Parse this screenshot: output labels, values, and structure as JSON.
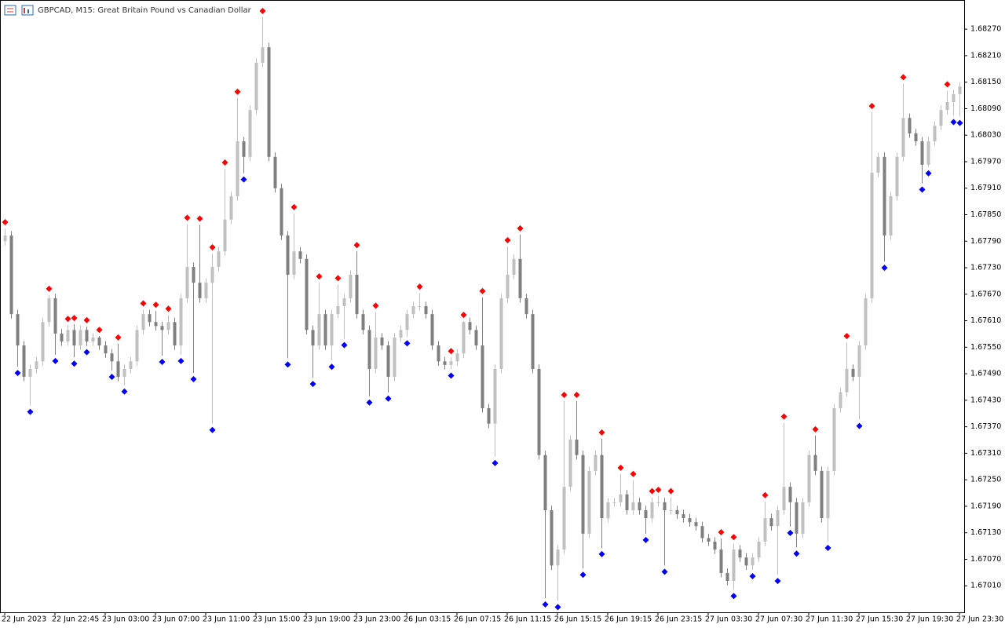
{
  "chart_data": {
    "type": "candlestick",
    "title": "GBPCAD, M15:  Great Britain Pound vs Canadian Dollar",
    "up_color": "#c0c0c0",
    "down_color": "#7f7f7f",
    "fractal_up_color": "#ff0000",
    "fractal_down_color": "#0000ff",
    "ylim": [
      1.6695,
      1.68336
    ],
    "yticks": [
      {
        "value": 1.6701,
        "label": "1.67010"
      },
      {
        "value": 1.6707,
        "label": "1.67070"
      },
      {
        "value": 1.6713,
        "label": "1.67130"
      },
      {
        "value": 1.6719,
        "label": "1.67190"
      },
      {
        "value": 1.6725,
        "label": "1.67250"
      },
      {
        "value": 1.6731,
        "label": "1.67310"
      },
      {
        "value": 1.6737,
        "label": "1.67370"
      },
      {
        "value": 1.6743,
        "label": "1.67430"
      },
      {
        "value": 1.6749,
        "label": "1.67490"
      },
      {
        "value": 1.6755,
        "label": "1.67550"
      },
      {
        "value": 1.6761,
        "label": "1.67610"
      },
      {
        "value": 1.6767,
        "label": "1.67670"
      },
      {
        "value": 1.6773,
        "label": "1.67730"
      },
      {
        "value": 1.6779,
        "label": "1.67790"
      },
      {
        "value": 1.6785,
        "label": "1.67850"
      },
      {
        "value": 1.6791,
        "label": "1.67910"
      },
      {
        "value": 1.6797,
        "label": "1.67970"
      },
      {
        "value": 1.6803,
        "label": "1.68030"
      },
      {
        "value": 1.6809,
        "label": "1.68090"
      },
      {
        "value": 1.6815,
        "label": "1.68150"
      },
      {
        "value": 1.6821,
        "label": "1.68210"
      },
      {
        "value": 1.6827,
        "label": "1.68270"
      }
    ],
    "categories": [
      "22 Jun 2023",
      null,
      null,
      null,
      null,
      null,
      null,
      null,
      "22 Jun 22:45",
      null,
      null,
      null,
      null,
      null,
      null,
      null,
      "23 Jun 03:00",
      null,
      null,
      null,
      null,
      null,
      null,
      null,
      "23 Jun 07:00",
      null,
      null,
      null,
      null,
      null,
      null,
      null,
      "23 Jun 11:00",
      null,
      null,
      null,
      null,
      null,
      null,
      null,
      "23 Jun 15:00",
      null,
      null,
      null,
      null,
      null,
      null,
      null,
      "23 Jun 19:00",
      null,
      null,
      null,
      null,
      null,
      null,
      null,
      "23 Jun 23:00",
      null,
      null,
      null,
      null,
      null,
      null,
      null,
      "26 Jun 03:15",
      null,
      null,
      null,
      null,
      null,
      null,
      null,
      "26 Jun 07:15",
      null,
      null,
      null,
      null,
      null,
      null,
      null,
      "26 Jun 11:15",
      null,
      null,
      null,
      null,
      null,
      null,
      null,
      "26 Jun 15:15",
      null,
      null,
      null,
      null,
      null,
      null,
      null,
      "26 Jun 19:15",
      null,
      null,
      null,
      null,
      null,
      null,
      null,
      "26 Jun 23:15",
      null,
      null,
      null,
      null,
      null,
      null,
      null,
      "27 Jun 03:30",
      null,
      null,
      null,
      null,
      null,
      null,
      null,
      "27 Jun 07:30",
      null,
      null,
      null,
      null,
      null,
      null,
      null,
      "27 Jun 11:30",
      null,
      null,
      null,
      null,
      null,
      null,
      null,
      "27 Jun 15:30",
      null,
      null,
      null,
      null,
      null,
      null,
      null,
      "27 Jun 19:30",
      null,
      null,
      null,
      null,
      null,
      null,
      null,
      "27 Jun 23:30"
    ],
    "ohlc": [
      [
        1.6779,
        1.67819,
        1.6778,
        1.67803
      ],
      [
        1.67803,
        1.67813,
        1.67615,
        1.67625
      ],
      [
        1.67625,
        1.67635,
        1.67506,
        1.67554
      ],
      [
        1.67554,
        1.67564,
        1.67473,
        1.67483
      ],
      [
        1.67483,
        1.67511,
        1.67418,
        1.67501
      ],
      [
        1.67501,
        1.67528,
        1.67491,
        1.67518
      ],
      [
        1.67518,
        1.67617,
        1.67508,
        1.67607
      ],
      [
        1.67607,
        1.67668,
        1.67597,
        1.67661
      ],
      [
        1.67661,
        1.67671,
        1.67533,
        1.67581
      ],
      [
        1.67581,
        1.67591,
        1.67553,
        1.67563
      ],
      [
        1.67563,
        1.676,
        1.67553,
        1.67589
      ],
      [
        1.67589,
        1.67602,
        1.67527,
        1.67554
      ],
      [
        1.67554,
        1.67599,
        1.67544,
        1.67589
      ],
      [
        1.67589,
        1.67597,
        1.67553,
        1.67563
      ],
      [
        1.67563,
        1.67582,
        1.67553,
        1.67572
      ],
      [
        1.67572,
        1.67575,
        1.67544,
        1.67554
      ],
      [
        1.67554,
        1.67564,
        1.67526,
        1.67536
      ],
      [
        1.67536,
        1.67546,
        1.67497,
        1.67518
      ],
      [
        1.67518,
        1.67558,
        1.67473,
        1.67483
      ],
      [
        1.67483,
        1.67511,
        1.67464,
        1.67501
      ],
      [
        1.67501,
        1.67528,
        1.67491,
        1.67518
      ],
      [
        1.67518,
        1.67599,
        1.67508,
        1.67589
      ],
      [
        1.67589,
        1.67635,
        1.67579,
        1.67625
      ],
      [
        1.67625,
        1.67635,
        1.67597,
        1.67607
      ],
      [
        1.67607,
        1.67632,
        1.67588,
        1.67598
      ],
      [
        1.67598,
        1.67608,
        1.67531,
        1.67589
      ],
      [
        1.67589,
        1.67623,
        1.67579,
        1.67607
      ],
      [
        1.67607,
        1.67617,
        1.67544,
        1.67554
      ],
      [
        1.67554,
        1.67671,
        1.67533,
        1.67661
      ],
      [
        1.67661,
        1.67829,
        1.67651,
        1.67732
      ],
      [
        1.67732,
        1.67742,
        1.67492,
        1.67696
      ],
      [
        1.67696,
        1.67827,
        1.67651,
        1.67661
      ],
      [
        1.67661,
        1.67706,
        1.67651,
        1.67696
      ],
      [
        1.67696,
        1.67762,
        1.67377,
        1.67732
      ],
      [
        1.67732,
        1.67777,
        1.67722,
        1.67767
      ],
      [
        1.67767,
        1.67954,
        1.67757,
        1.67839
      ],
      [
        1.67839,
        1.67902,
        1.67829,
        1.67892
      ],
      [
        1.67892,
        1.68114,
        1.67882,
        1.68016
      ],
      [
        1.68016,
        1.68026,
        1.67944,
        1.67981
      ],
      [
        1.67981,
        1.68097,
        1.67971,
        1.68087
      ],
      [
        1.68087,
        1.68204,
        1.68077,
        1.68194
      ],
      [
        1.68194,
        1.68297,
        1.68184,
        1.68229
      ],
      [
        1.68229,
        1.68239,
        1.67971,
        1.67981
      ],
      [
        1.67981,
        1.67991,
        1.679,
        1.6791
      ],
      [
        1.6791,
        1.6792,
        1.67793,
        1.67803
      ],
      [
        1.67803,
        1.67813,
        1.67525,
        1.67714
      ],
      [
        1.67714,
        1.67853,
        1.67704,
        1.67767
      ],
      [
        1.67767,
        1.67777,
        1.6774,
        1.6775
      ],
      [
        1.6775,
        1.6776,
        1.67579,
        1.67589
      ],
      [
        1.67589,
        1.67599,
        1.67481,
        1.67554
      ],
      [
        1.67554,
        1.67696,
        1.67544,
        1.67625
      ],
      [
        1.67625,
        1.67635,
        1.67544,
        1.67554
      ],
      [
        1.67554,
        1.67635,
        1.6752,
        1.67625
      ],
      [
        1.67625,
        1.67692,
        1.67615,
        1.67643
      ],
      [
        1.67643,
        1.67671,
        1.67569,
        1.67661
      ],
      [
        1.67661,
        1.67724,
        1.67651,
        1.67714
      ],
      [
        1.67714,
        1.67767,
        1.67615,
        1.67625
      ],
      [
        1.67625,
        1.67635,
        1.67579,
        1.67589
      ],
      [
        1.67589,
        1.67599,
        1.67439,
        1.67501
      ],
      [
        1.67501,
        1.6763,
        1.67491,
        1.67572
      ],
      [
        1.67572,
        1.67582,
        1.67544,
        1.67554
      ],
      [
        1.67554,
        1.67564,
        1.67448,
        1.67483
      ],
      [
        1.67483,
        1.67582,
        1.67473,
        1.67572
      ],
      [
        1.67572,
        1.67599,
        1.67562,
        1.67589
      ],
      [
        1.67589,
        1.67635,
        1.67573,
        1.67625
      ],
      [
        1.67625,
        1.67653,
        1.67615,
        1.67643
      ],
      [
        1.67643,
        1.67673,
        1.67633,
        1.67643
      ],
      [
        1.67643,
        1.67653,
        1.67615,
        1.67625
      ],
      [
        1.67625,
        1.67635,
        1.67544,
        1.67554
      ],
      [
        1.67554,
        1.67564,
        1.67508,
        1.67518
      ],
      [
        1.67518,
        1.67528,
        1.675,
        1.6751
      ],
      [
        1.6751,
        1.67527,
        1.675,
        1.67518
      ],
      [
        1.67518,
        1.67546,
        1.67508,
        1.67536
      ],
      [
        1.67536,
        1.67609,
        1.67526,
        1.67607
      ],
      [
        1.67607,
        1.67617,
        1.67579,
        1.67589
      ],
      [
        1.67589,
        1.67599,
        1.67544,
        1.67554
      ],
      [
        1.67554,
        1.67663,
        1.67402,
        1.67412
      ],
      [
        1.67412,
        1.67422,
        1.67367,
        1.67377
      ],
      [
        1.67377,
        1.67511,
        1.67302,
        1.67501
      ],
      [
        1.67501,
        1.67671,
        1.67491,
        1.67661
      ],
      [
        1.67661,
        1.67778,
        1.67651,
        1.67714
      ],
      [
        1.67714,
        1.6776,
        1.67704,
        1.6775
      ],
      [
        1.6775,
        1.67805,
        1.67651,
        1.67661
      ],
      [
        1.67661,
        1.67671,
        1.67615,
        1.67625
      ],
      [
        1.67625,
        1.67635,
        1.67491,
        1.67501
      ],
      [
        1.67501,
        1.67511,
        1.67296,
        1.67306
      ],
      [
        1.67306,
        1.67316,
        1.66982,
        1.67181
      ],
      [
        1.67181,
        1.67191,
        1.67046,
        1.67056
      ],
      [
        1.67056,
        1.67102,
        1.66976,
        1.67092
      ],
      [
        1.67092,
        1.67428,
        1.67082,
        1.67234
      ],
      [
        1.67234,
        1.67351,
        1.67224,
        1.67341
      ],
      [
        1.67341,
        1.67428,
        1.67296,
        1.67306
      ],
      [
        1.67306,
        1.67316,
        1.67049,
        1.67128
      ],
      [
        1.67128,
        1.6728,
        1.67118,
        1.6727
      ],
      [
        1.6727,
        1.67316,
        1.6726,
        1.67306
      ],
      [
        1.67306,
        1.67343,
        1.67096,
        1.67163
      ],
      [
        1.67163,
        1.67209,
        1.67153,
        1.67199
      ],
      [
        1.67199,
        1.67209,
        1.67189,
        1.67199
      ],
      [
        1.67199,
        1.67263,
        1.67189,
        1.67217
      ],
      [
        1.67217,
        1.67227,
        1.67171,
        1.67181
      ],
      [
        1.67181,
        1.67249,
        1.67171,
        1.67199
      ],
      [
        1.67199,
        1.67209,
        1.67171,
        1.67181
      ],
      [
        1.67181,
        1.67191,
        1.67128,
        1.67163
      ],
      [
        1.67163,
        1.6721,
        1.67153,
        1.67199
      ],
      [
        1.67199,
        1.67213,
        1.67189,
        1.67199
      ],
      [
        1.67199,
        1.67209,
        1.67056,
        1.67181
      ],
      [
        1.67181,
        1.6721,
        1.67171,
        1.67181
      ],
      [
        1.67181,
        1.67191,
        1.67162,
        1.67172
      ],
      [
        1.67172,
        1.67182,
        1.67153,
        1.67163
      ],
      [
        1.67163,
        1.67173,
        1.67144,
        1.67154
      ],
      [
        1.67154,
        1.67164,
        1.67135,
        1.67145
      ],
      [
        1.67145,
        1.67155,
        1.67108,
        1.67118
      ],
      [
        1.67118,
        1.67128,
        1.671,
        1.6711
      ],
      [
        1.6711,
        1.6712,
        1.67082,
        1.67092
      ],
      [
        1.67092,
        1.67117,
        1.67029,
        1.67039
      ],
      [
        1.67039,
        1.67049,
        1.67011,
        1.67021
      ],
      [
        1.67021,
        1.67106,
        1.67001,
        1.67092
      ],
      [
        1.67092,
        1.67102,
        1.67064,
        1.67074
      ],
      [
        1.67074,
        1.67084,
        1.67046,
        1.67056
      ],
      [
        1.67056,
        1.67084,
        1.67046,
        1.67074
      ],
      [
        1.67074,
        1.6712,
        1.67064,
        1.6711
      ],
      [
        1.6711,
        1.67201,
        1.671,
        1.67163
      ],
      [
        1.67163,
        1.67173,
        1.67135,
        1.67145
      ],
      [
        1.67145,
        1.67191,
        1.67035,
        1.67181
      ],
      [
        1.67181,
        1.67379,
        1.67171,
        1.67234
      ],
      [
        1.67234,
        1.67244,
        1.67144,
        1.67199
      ],
      [
        1.67199,
        1.67209,
        1.67097,
        1.67128
      ],
      [
        1.67128,
        1.67209,
        1.67118,
        1.67199
      ],
      [
        1.67199,
        1.67316,
        1.67189,
        1.67306
      ],
      [
        1.67306,
        1.6735,
        1.6726,
        1.6727
      ],
      [
        1.6727,
        1.6728,
        1.67153,
        1.67163
      ],
      [
        1.67163,
        1.6728,
        1.6711,
        1.6727
      ],
      [
        1.6727,
        1.67422,
        1.6726,
        1.67412
      ],
      [
        1.67412,
        1.67458,
        1.67402,
        1.67448
      ],
      [
        1.67448,
        1.67561,
        1.67438,
        1.67501
      ],
      [
        1.67501,
        1.67511,
        1.67473,
        1.67483
      ],
      [
        1.67483,
        1.67564,
        1.67386,
        1.67554
      ],
      [
        1.67554,
        1.67671,
        1.67544,
        1.67661
      ],
      [
        1.67661,
        1.68082,
        1.67651,
        1.67945
      ],
      [
        1.67945,
        1.67991,
        1.67935,
        1.67981
      ],
      [
        1.67981,
        1.67991,
        1.67744,
        1.67803
      ],
      [
        1.67803,
        1.67902,
        1.67793,
        1.67892
      ],
      [
        1.67892,
        1.67991,
        1.67882,
        1.67981
      ],
      [
        1.67981,
        1.68147,
        1.67971,
        1.68069
      ],
      [
        1.68069,
        1.68079,
        1.68024,
        1.68034
      ],
      [
        1.68034,
        1.68044,
        1.68006,
        1.68016
      ],
      [
        1.68016,
        1.68026,
        1.67921,
        1.67963
      ],
      [
        1.67963,
        1.68026,
        1.67958,
        1.68016
      ],
      [
        1.68016,
        1.68061,
        1.68006,
        1.68051
      ],
      [
        1.68051,
        1.68097,
        1.68041,
        1.68087
      ],
      [
        1.68087,
        1.68131,
        1.68077,
        1.68105
      ],
      [
        1.68105,
        1.68133,
        1.68074,
        1.68123
      ],
      [
        1.68123,
        1.6815,
        1.68072,
        1.6814
      ]
    ],
    "fractals_up": [
      0,
      7,
      10,
      11,
      13,
      15,
      18,
      22,
      24,
      26,
      29,
      31,
      33,
      35,
      37,
      41,
      46,
      50,
      53,
      56,
      59,
      66,
      71,
      73,
      76,
      80,
      82,
      89,
      91,
      95,
      98,
      100,
      103,
      104,
      106,
      114,
      116,
      121,
      124,
      129,
      134,
      138,
      143,
      150
    ],
    "fractals_down": [
      2,
      4,
      8,
      11,
      13,
      17,
      19,
      25,
      28,
      30,
      33,
      38,
      45,
      49,
      52,
      54,
      58,
      61,
      64,
      71,
      78,
      86,
      88,
      92,
      95,
      102,
      105,
      116,
      119,
      123,
      125,
      126,
      131,
      136,
      140,
      146,
      147,
      151,
      152
    ]
  }
}
